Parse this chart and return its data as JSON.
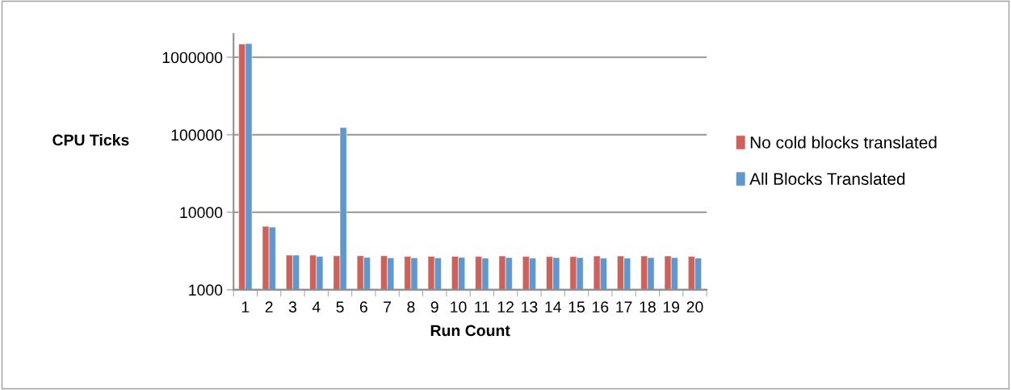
{
  "chart_data": {
    "type": "bar",
    "xlabel": "Run Count",
    "ylabel": "CPU Ticks",
    "categories": [
      "1",
      "2",
      "3",
      "4",
      "5",
      "6",
      "7",
      "8",
      "9",
      "10",
      "11",
      "12",
      "13",
      "14",
      "15",
      "16",
      "17",
      "18",
      "19",
      "20"
    ],
    "series": [
      {
        "name": "No cold blocks translated",
        "color": "#cb625c",
        "values": [
          1480000,
          6600,
          2800,
          2800,
          2750,
          2750,
          2750,
          2700,
          2700,
          2700,
          2690,
          2730,
          2690,
          2680,
          2680,
          2730,
          2730,
          2730,
          2730,
          2690
        ]
      },
      {
        "name": "All Blocks Translated",
        "color": "#6197cc",
        "values": [
          1500000,
          6450,
          2800,
          2700,
          124000,
          2620,
          2580,
          2580,
          2580,
          2620,
          2560,
          2600,
          2560,
          2600,
          2600,
          2560,
          2560,
          2600,
          2600,
          2560
        ]
      }
    ],
    "log": "y",
    "ylim": [
      1000,
      2000000
    ],
    "yticks": [
      1000,
      10000,
      100000,
      1000000
    ],
    "grid": "y",
    "legend": "right"
  }
}
